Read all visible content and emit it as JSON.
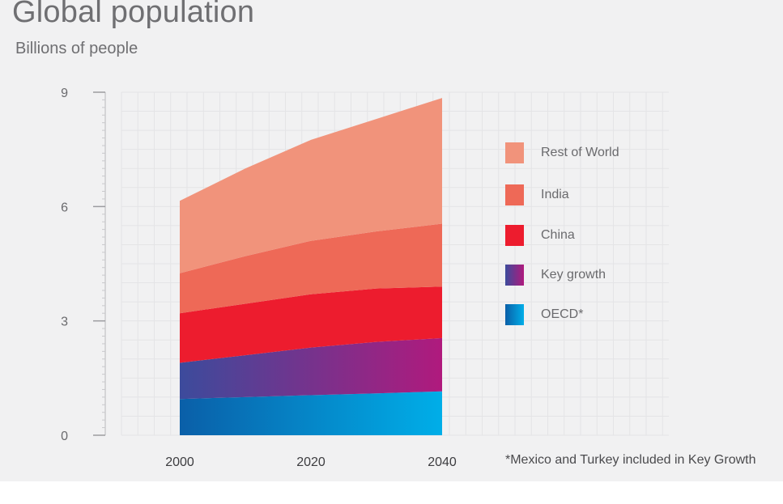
{
  "title": "Global population",
  "subtitle": "Billions of people",
  "footnote": "*Mexico and Turkey included in Key Growth",
  "chart_data": {
    "type": "area",
    "stacked": true,
    "title": "Global population",
    "ylabel": "Billions of people",
    "xlabel": "",
    "x": [
      2000,
      2010,
      2020,
      2030,
      2040
    ],
    "xticks": [
      2000,
      2020,
      2040
    ],
    "yticks": [
      0,
      3,
      6,
      9
    ],
    "ylim": [
      0,
      9
    ],
    "xlim": [
      1990,
      2070
    ],
    "series": [
      {
        "name": "OECD*",
        "values": [
          0.95,
          1.0,
          1.05,
          1.1,
          1.15
        ],
        "color_start": "#0a5fa8",
        "color_end": "#00aee8"
      },
      {
        "name": "Key growth",
        "values": [
          0.95,
          1.1,
          1.25,
          1.35,
          1.4
        ],
        "color_start": "#3c4b9c",
        "color_end": "#b01a7d"
      },
      {
        "name": "China",
        "values": [
          1.3,
          1.35,
          1.4,
          1.4,
          1.35
        ],
        "color": "#ed1c2e"
      },
      {
        "name": "India",
        "values": [
          1.05,
          1.25,
          1.4,
          1.5,
          1.65
        ],
        "color": "#ee6957"
      },
      {
        "name": "Rest of World",
        "values": [
          1.9,
          2.3,
          2.65,
          2.95,
          3.3
        ],
        "color": "#f1937b"
      }
    ],
    "legend_order": [
      "Rest of World",
      "India",
      "China",
      "Key growth",
      "OECD*"
    ],
    "legend_position": "right"
  }
}
